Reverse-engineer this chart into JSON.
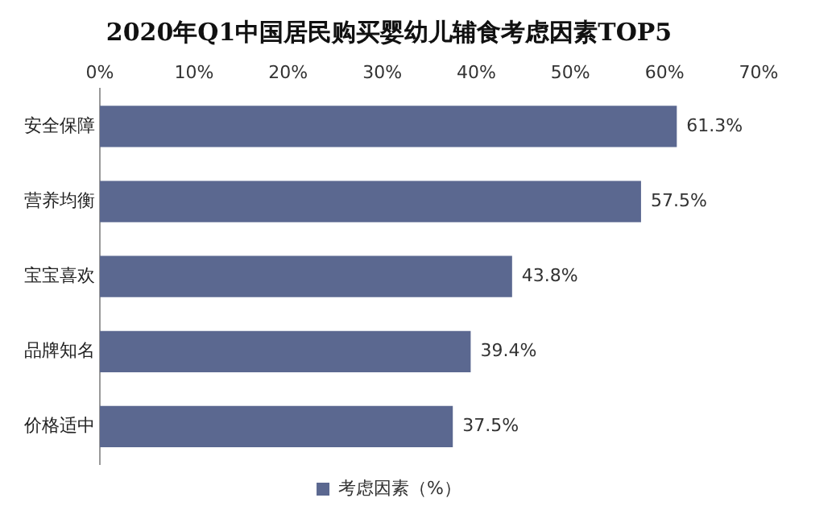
{
  "chart_data": {
    "type": "bar",
    "orientation": "horizontal",
    "title": "2020年Q1中国居民购买婴幼儿辅食考虑因素TOP5",
    "categories": [
      "安全保障",
      "营养均衡",
      "宝宝喜欢",
      "品牌知名",
      "价格适中"
    ],
    "series": [
      {
        "name": "考虑因素（%）",
        "color": "#5b6890",
        "values": [
          61.3,
          57.5,
          43.8,
          39.4,
          37.5
        ]
      }
    ],
    "value_labels": [
      "61.3%",
      "57.5%",
      "43.8%",
      "39.4%",
      "37.5%"
    ],
    "xlim": [
      0,
      70
    ],
    "xticks": [
      {
        "value": 0,
        "label": "0%"
      },
      {
        "value": 10,
        "label": "10%"
      },
      {
        "value": 20,
        "label": "20%"
      },
      {
        "value": 30,
        "label": "30%"
      },
      {
        "value": 40,
        "label": "40%"
      },
      {
        "value": 50,
        "label": "50%"
      },
      {
        "value": 60,
        "label": "60%"
      },
      {
        "value": 70,
        "label": "70%"
      }
    ],
    "grid": false,
    "legend": "bottom"
  }
}
